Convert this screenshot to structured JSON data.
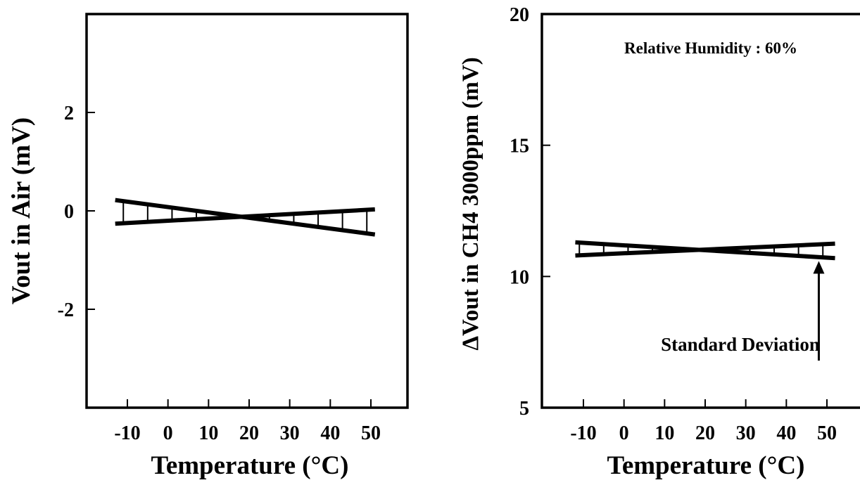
{
  "chart_data": [
    {
      "type": "line",
      "title": "",
      "xlabel": "Temperature (°C)",
      "ylabel": "Vout in Air (mV)",
      "xlim": [
        -20,
        60
      ],
      "ylim": [
        -4,
        4
      ],
      "x_ticks": [
        -10,
        0,
        10,
        20,
        30,
        40,
        50
      ],
      "y_ticks": [
        -2,
        0,
        2
      ],
      "y_tick_labels": [
        "-2",
        "0",
        "2"
      ],
      "series": [
        {
          "x": [
            -13,
            51
          ],
          "y": [
            0.22,
            -0.48
          ]
        },
        {
          "x": [
            -13,
            51
          ],
          "y": [
            -0.26,
            0.03
          ]
        }
      ],
      "band_hatch_x": [
        -11,
        -5,
        1,
        7,
        13,
        19,
        25,
        31,
        37,
        43,
        49
      ],
      "grid": false
    },
    {
      "type": "line",
      "title": "",
      "xlabel": "Temperature (°C)",
      "ylabel": "ΔVout in CH4 3000ppm (mV)",
      "xlim": [
        -20,
        60
      ],
      "ylim": [
        5,
        20
      ],
      "x_ticks": [
        -10,
        0,
        10,
        20,
        30,
        40,
        50
      ],
      "y_ticks": [
        5,
        10,
        15,
        20
      ],
      "y_tick_labels": [
        "5",
        "10",
        "15",
        "20"
      ],
      "series": [
        {
          "x": [
            -12,
            52
          ],
          "y": [
            11.3,
            10.7
          ]
        },
        {
          "x": [
            -12,
            52
          ],
          "y": [
            10.8,
            11.25
          ]
        }
      ],
      "band_hatch_x": [
        -11,
        -5,
        1,
        7,
        13,
        19,
        25,
        31,
        37,
        43,
        49
      ],
      "annotations": {
        "condition": "Relative Humidity : 60%",
        "arrow_label": "Standard Deviation",
        "arrow_x": 48,
        "arrow_tip_y": 10.75,
        "arrow_tail_y": 8.0
      },
      "grid": false
    }
  ]
}
